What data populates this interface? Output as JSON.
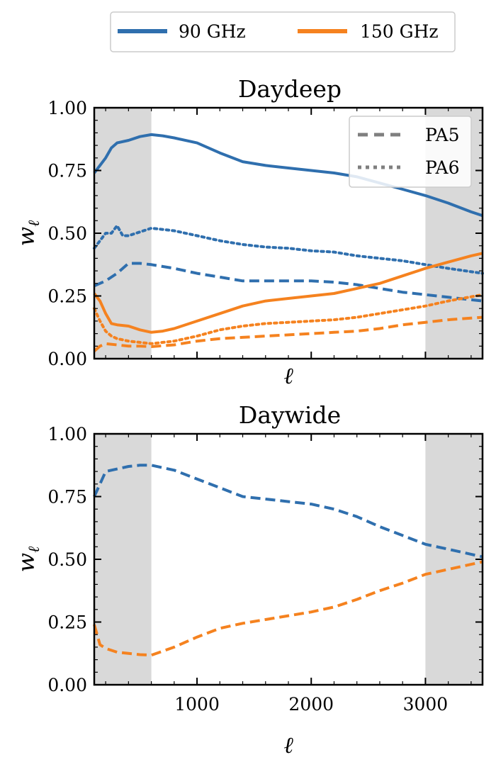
{
  "figure_legend": {
    "entries": [
      {
        "label": "90 GHz",
        "color": "#2f6fae"
      },
      {
        "label": "150 GHz",
        "color": "#f5821f"
      }
    ]
  },
  "chart_data": [
    {
      "type": "line",
      "title": "Daydeep",
      "xlabel": "ℓ",
      "ylabel": "w_ℓ",
      "ylabel_symbol": "w",
      "ylabel_subscript": "ℓ",
      "xlim": [
        100,
        3500
      ],
      "ylim": [
        0,
        1
      ],
      "yticks": [
        "0.00",
        "0.25",
        "0.50",
        "0.75",
        "1.00"
      ],
      "xticks": [],
      "shaded_x_ranges": [
        [
          100,
          600
        ],
        [
          3000,
          3500
        ]
      ],
      "shade_color": "#d9d9d9",
      "style_legend": {
        "position": "top-right",
        "entries": [
          {
            "label": "PA5",
            "linestyle": "dashed"
          },
          {
            "label": "PA6",
            "linestyle": "dotted"
          }
        ]
      },
      "series": [
        {
          "frequency": "90 GHz",
          "linestyle": "solid",
          "color": "#2f6fae",
          "x": [
            100,
            150,
            200,
            250,
            300,
            400,
            500,
            600,
            700,
            800,
            1000,
            1200,
            1400,
            1600,
            1800,
            2000,
            2200,
            2400,
            2600,
            2800,
            3000,
            3200,
            3400,
            3500
          ],
          "y": [
            0.74,
            0.77,
            0.8,
            0.84,
            0.86,
            0.87,
            0.885,
            0.893,
            0.888,
            0.88,
            0.86,
            0.82,
            0.785,
            0.77,
            0.76,
            0.75,
            0.74,
            0.725,
            0.7,
            0.675,
            0.65,
            0.62,
            0.585,
            0.57
          ]
        },
        {
          "frequency": "90 GHz",
          "linestyle": "dashed",
          "color": "#2f6fae",
          "x": [
            100,
            200,
            300,
            400,
            500,
            600,
            800,
            1000,
            1200,
            1400,
            1600,
            1800,
            2000,
            2200,
            2400,
            2600,
            2800,
            3000,
            3200,
            3500
          ],
          "y": [
            0.29,
            0.31,
            0.34,
            0.38,
            0.38,
            0.375,
            0.36,
            0.34,
            0.325,
            0.31,
            0.31,
            0.31,
            0.31,
            0.305,
            0.295,
            0.28,
            0.265,
            0.255,
            0.245,
            0.23
          ]
        },
        {
          "frequency": "90 GHz",
          "linestyle": "dotted",
          "color": "#2f6fae",
          "x": [
            100,
            150,
            200,
            250,
            300,
            350,
            400,
            500,
            600,
            800,
            1000,
            1200,
            1400,
            1600,
            1800,
            2000,
            2200,
            2400,
            2600,
            2800,
            3000,
            3200,
            3500
          ],
          "y": [
            0.44,
            0.47,
            0.5,
            0.5,
            0.53,
            0.49,
            0.49,
            0.505,
            0.52,
            0.51,
            0.49,
            0.47,
            0.455,
            0.445,
            0.44,
            0.43,
            0.425,
            0.41,
            0.4,
            0.39,
            0.375,
            0.36,
            0.34
          ]
        },
        {
          "frequency": "150 GHz",
          "linestyle": "solid",
          "color": "#f5821f",
          "x": [
            100,
            150,
            200,
            250,
            300,
            400,
            500,
            600,
            700,
            800,
            1000,
            1200,
            1400,
            1600,
            1800,
            2000,
            2200,
            2400,
            2600,
            2800,
            3000,
            3200,
            3400,
            3500
          ],
          "y": [
            0.26,
            0.23,
            0.18,
            0.14,
            0.135,
            0.13,
            0.115,
            0.105,
            0.11,
            0.12,
            0.15,
            0.18,
            0.21,
            0.23,
            0.24,
            0.25,
            0.26,
            0.28,
            0.3,
            0.33,
            0.36,
            0.385,
            0.41,
            0.42
          ]
        },
        {
          "frequency": "150 GHz",
          "linestyle": "dashed",
          "color": "#f5821f",
          "x": [
            100,
            150,
            200,
            300,
            400,
            500,
            600,
            800,
            1000,
            1200,
            1400,
            1600,
            1800,
            2000,
            2200,
            2400,
            2600,
            2800,
            3000,
            3200,
            3500
          ],
          "y": [
            0.03,
            0.05,
            0.06,
            0.055,
            0.05,
            0.05,
            0.048,
            0.055,
            0.07,
            0.08,
            0.085,
            0.09,
            0.095,
            0.1,
            0.105,
            0.11,
            0.12,
            0.135,
            0.145,
            0.155,
            0.165
          ]
        },
        {
          "frequency": "150 GHz",
          "linestyle": "dotted",
          "color": "#f5821f",
          "x": [
            100,
            150,
            200,
            250,
            300,
            400,
            500,
            600,
            800,
            1000,
            1200,
            1400,
            1600,
            1800,
            2000,
            2200,
            2400,
            2600,
            2800,
            3000,
            3200,
            3500
          ],
          "y": [
            0.2,
            0.15,
            0.11,
            0.09,
            0.08,
            0.07,
            0.065,
            0.06,
            0.07,
            0.09,
            0.115,
            0.13,
            0.14,
            0.145,
            0.15,
            0.155,
            0.165,
            0.18,
            0.195,
            0.21,
            0.23,
            0.255
          ]
        }
      ]
    },
    {
      "type": "line",
      "title": "Daywide",
      "xlabel": "ℓ",
      "ylabel": "w_ℓ",
      "ylabel_symbol": "w",
      "ylabel_subscript": "ℓ",
      "xlim": [
        100,
        3500
      ],
      "ylim": [
        0,
        1
      ],
      "yticks": [
        "0.00",
        "0.25",
        "0.50",
        "0.75",
        "1.00"
      ],
      "xticks": [
        1000,
        2000,
        3000
      ],
      "xtick_labels": [
        "1000",
        "2000",
        "3000"
      ],
      "shaded_x_ranges": [
        [
          100,
          600
        ],
        [
          3000,
          3500
        ]
      ],
      "shade_color": "#d9d9d9",
      "series": [
        {
          "frequency": "90 GHz",
          "linestyle": "dashed",
          "color": "#2f6fae",
          "x": [
            100,
            150,
            200,
            300,
            400,
            500,
            600,
            800,
            1000,
            1200,
            1400,
            1600,
            1800,
            2000,
            2200,
            2400,
            2600,
            2800,
            3000,
            3200,
            3400,
            3500
          ],
          "y": [
            0.75,
            0.8,
            0.85,
            0.86,
            0.87,
            0.875,
            0.875,
            0.855,
            0.82,
            0.785,
            0.75,
            0.74,
            0.73,
            0.72,
            0.7,
            0.67,
            0.63,
            0.595,
            0.56,
            0.54,
            0.52,
            0.51
          ]
        },
        {
          "frequency": "150 GHz",
          "linestyle": "dashed",
          "color": "#f5821f",
          "x": [
            100,
            150,
            200,
            300,
            400,
            500,
            600,
            800,
            1000,
            1200,
            1400,
            1600,
            1800,
            2000,
            2200,
            2400,
            2600,
            2800,
            3000,
            3200,
            3400,
            3500
          ],
          "y": [
            0.24,
            0.16,
            0.145,
            0.13,
            0.125,
            0.12,
            0.118,
            0.15,
            0.19,
            0.225,
            0.245,
            0.26,
            0.275,
            0.29,
            0.31,
            0.34,
            0.375,
            0.405,
            0.44,
            0.46,
            0.48,
            0.49
          ]
        }
      ]
    }
  ]
}
